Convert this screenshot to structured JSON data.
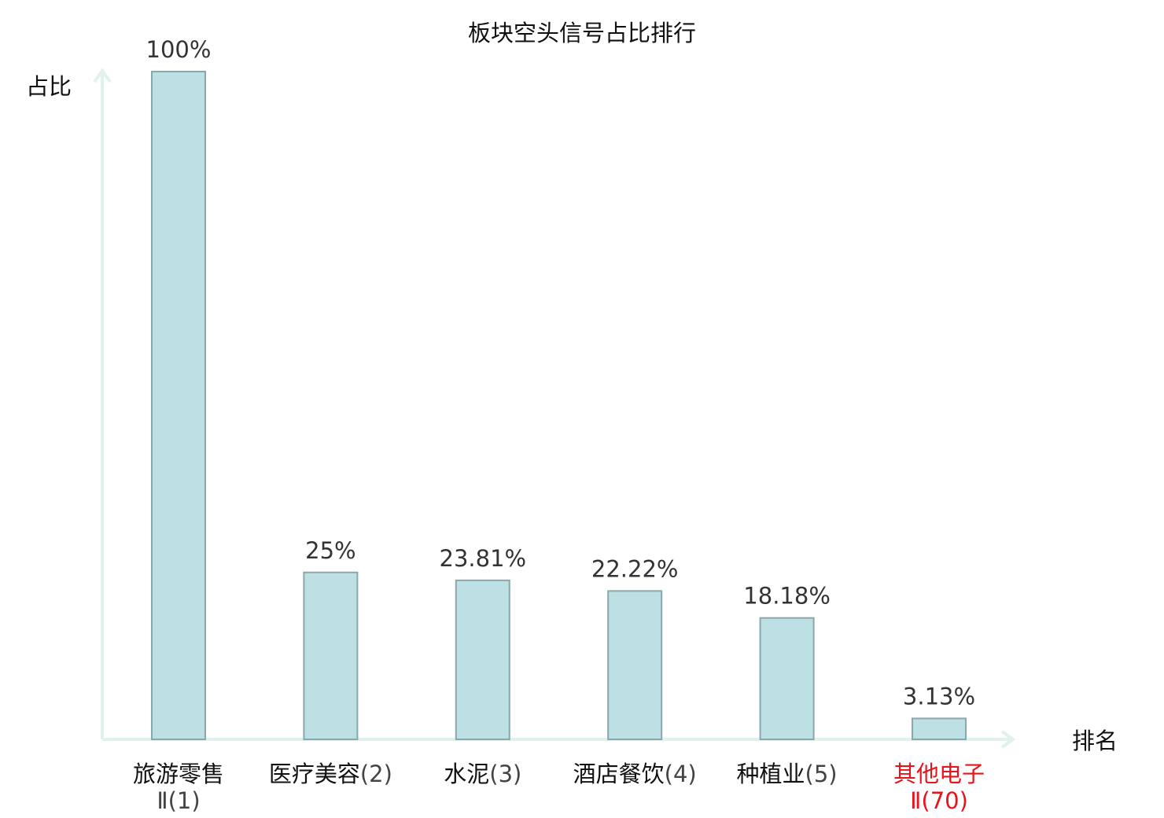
{
  "chart_data": {
    "type": "bar",
    "title": "板块空头信号占比排行",
    "ylabel": "占比",
    "xlabel": "排名",
    "ylim": [
      0,
      100
    ],
    "grid": false,
    "legend": "none",
    "categories": [
      {
        "name": "旅游零售",
        "name_line2": "Ⅱ",
        "rank": "(1)",
        "highlight": false
      },
      {
        "name": "医疗美容",
        "name_line2": "",
        "rank": "(2)",
        "highlight": false
      },
      {
        "name": "水泥",
        "name_line2": "",
        "rank": "(3)",
        "highlight": false
      },
      {
        "name": "酒店餐饮",
        "name_line2": "",
        "rank": "(4)",
        "highlight": false
      },
      {
        "name": "种植业",
        "name_line2": "",
        "rank": "(5)",
        "highlight": false
      },
      {
        "name": "其他电子",
        "name_line2": "Ⅱ",
        "rank": "(70)",
        "highlight": true
      }
    ],
    "values": [
      100,
      25,
      23.81,
      22.22,
      18.18,
      3.13
    ],
    "value_labels": [
      "100%",
      "25%",
      "23.81%",
      "22.22%",
      "18.18%",
      "3.13%"
    ]
  },
  "colors": {
    "bar_fill": "#bce0e3",
    "bar_stroke": "#8aa7aa",
    "axis": "#e0f1ee",
    "label_text": "#111111",
    "rank_text": "#444444",
    "highlight": "#e8141c"
  }
}
